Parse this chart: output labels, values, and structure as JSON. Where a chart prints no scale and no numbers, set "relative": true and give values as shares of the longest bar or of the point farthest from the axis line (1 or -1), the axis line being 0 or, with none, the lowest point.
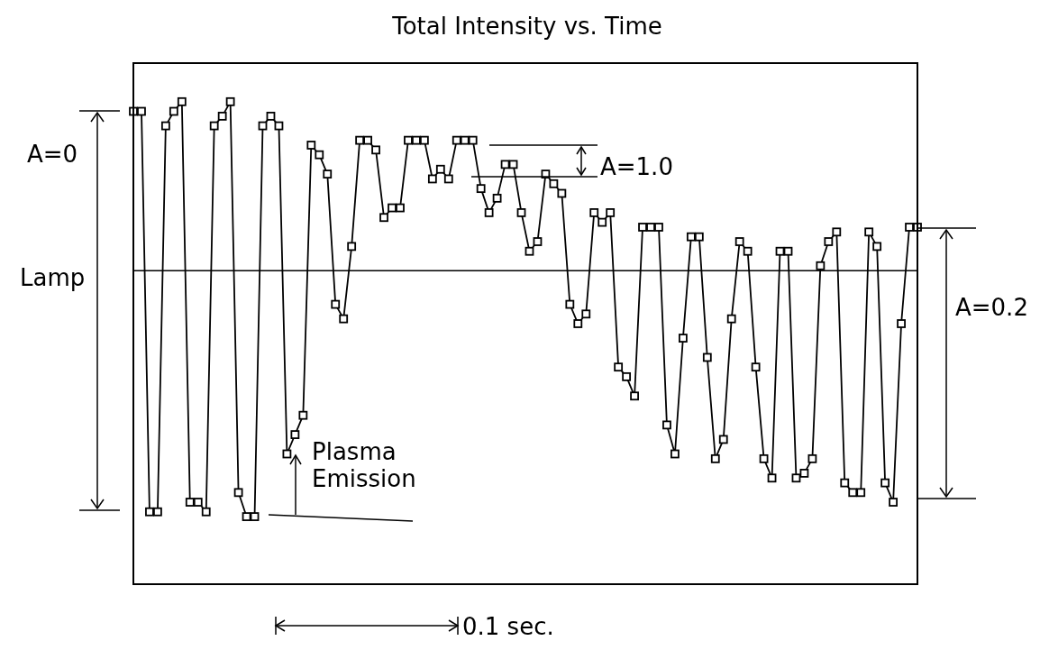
{
  "chart_data": {
    "type": "line",
    "title": "Total Intensity vs. Time",
    "relative": true,
    "marker": "square",
    "line_style": "solid",
    "tick_labels": false,
    "categories": [
      null,
      null,
      null,
      null,
      null,
      null,
      null,
      null,
      null,
      null,
      null,
      null,
      null,
      null,
      null,
      null,
      null,
      null,
      null,
      null,
      null,
      null,
      null,
      null,
      null,
      null,
      null,
      null,
      null,
      null,
      null,
      null,
      null,
      null,
      null,
      null,
      null,
      null,
      null,
      null,
      null,
      null,
      null,
      null,
      null,
      null,
      null,
      null,
      null,
      null,
      null,
      null,
      null,
      null,
      null,
      null,
      null,
      null,
      null,
      null,
      null,
      null,
      null,
      null,
      null,
      null,
      null,
      null,
      null,
      null,
      null,
      null,
      null,
      null,
      null,
      null,
      null,
      null,
      null,
      null,
      null,
      null,
      null,
      null,
      null,
      null,
      null,
      null,
      null,
      null,
      null,
      null,
      null,
      null,
      null,
      null,
      null,
      null
    ],
    "series": [
      {
        "color": "#000000",
        "values": [
          0.98,
          0.98,
          0.15,
          0.15,
          0.95,
          0.98,
          1.0,
          0.17,
          0.17,
          0.15,
          0.95,
          0.97,
          1.0,
          0.19,
          0.14,
          0.14,
          0.95,
          0.97,
          0.95,
          0.27,
          0.31,
          0.35,
          0.91,
          0.89,
          0.85,
          0.58,
          0.55,
          0.7,
          0.92,
          0.92,
          0.9,
          0.76,
          0.78,
          0.78,
          0.92,
          0.92,
          0.92,
          0.84,
          0.86,
          0.84,
          0.92,
          0.92,
          0.92,
          0.82,
          0.77,
          0.8,
          0.87,
          0.87,
          0.77,
          0.69,
          0.71,
          0.85,
          0.83,
          0.81,
          0.58,
          0.54,
          0.56,
          0.77,
          0.75,
          0.77,
          0.45,
          0.43,
          0.39,
          0.74,
          0.74,
          0.74,
          0.33,
          0.27,
          0.51,
          0.72,
          0.72,
          0.47,
          0.26,
          0.3,
          0.55,
          0.71,
          0.69,
          0.45,
          0.26,
          0.22,
          0.69,
          0.69,
          0.22,
          0.23,
          0.26,
          0.66,
          0.71,
          0.73,
          0.21,
          0.19,
          0.19,
          0.73,
          0.7,
          0.21,
          0.17,
          0.54,
          0.74,
          0.74
        ]
      }
    ],
    "ref_lines": [
      {
        "axis": "y",
        "value": 0.65,
        "color": "#000000"
      }
    ],
    "annotations": [
      "A=0",
      "Lamp",
      "A=1.0",
      "A=0.2",
      "Plasma Emission",
      "0.1 sec."
    ]
  }
}
